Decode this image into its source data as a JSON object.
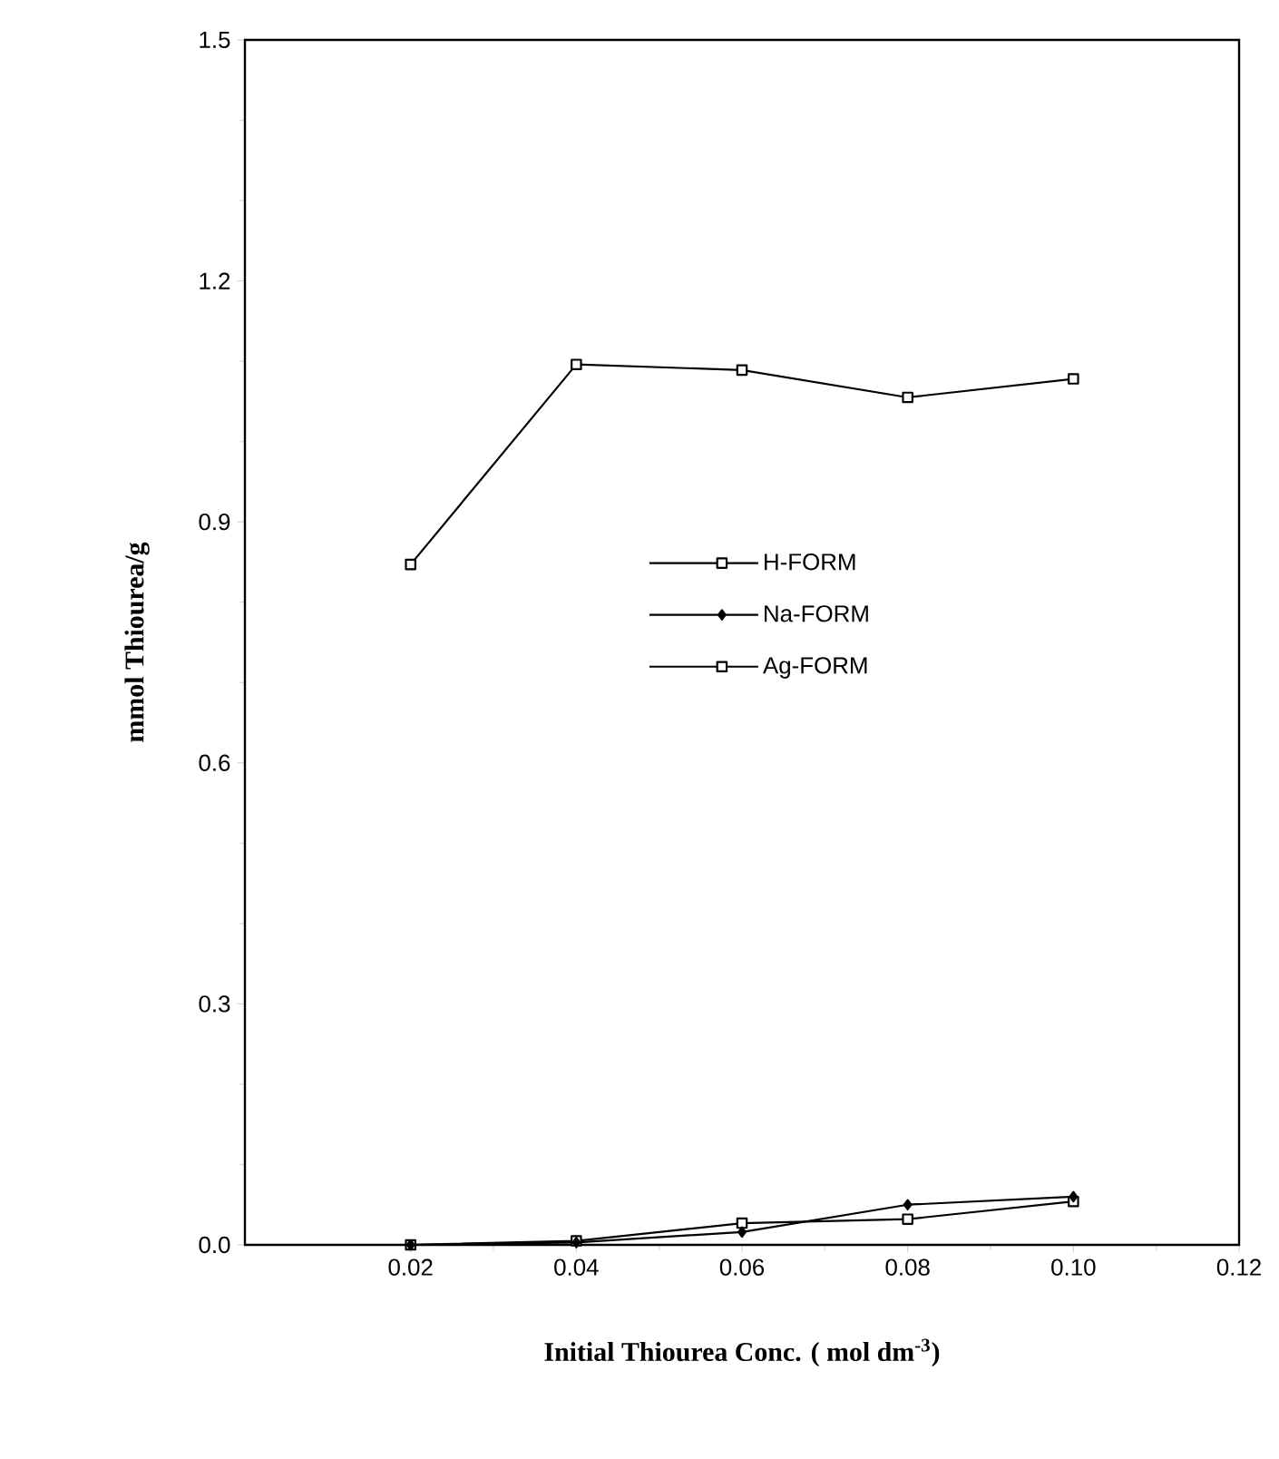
{
  "chart_data": {
    "type": "line",
    "xlabel": "Initial Thiourea Conc. ( mol dm$^{-3}$)",
    "ylabel": "mmol Thiourea/g",
    "x": [
      0.02,
      0.04,
      0.06,
      0.08,
      0.1
    ],
    "series": [
      {
        "name": "H-FORM",
        "color": "#000000",
        "marker": "square",
        "values": [
          0.0,
          0.005,
          0.027,
          0.032,
          0.054
        ]
      },
      {
        "name": "Na-FORM",
        "color": "#000000",
        "marker": "diamond",
        "values": [
          0.0,
          0.003,
          0.016,
          0.05,
          0.06
        ]
      },
      {
        "name": "Ag-FORM",
        "color": "#000000",
        "marker": "square",
        "values": [
          0.847,
          1.096,
          1.089,
          1.055,
          1.078
        ]
      }
    ],
    "xlim": [
      0,
      0.12
    ],
    "ylim": [
      0,
      1.5
    ],
    "xticks": [
      {
        "value": 0.02,
        "label": "0.02"
      },
      {
        "value": 0.04,
        "label": "0.04"
      },
      {
        "value": 0.06,
        "label": "0.06"
      },
      {
        "value": 0.08,
        "label": "0.08"
      },
      {
        "value": 0.1,
        "label": "0.10"
      },
      {
        "value": 0.12,
        "label": "0.12"
      }
    ],
    "yticks": [
      {
        "value": 0,
        "label": "0.0"
      },
      {
        "value": 0.3,
        "label": "0.3"
      },
      {
        "value": 0.6,
        "label": "0.6"
      },
      {
        "value": 0.9,
        "label": "0.9"
      },
      {
        "value": 1.2,
        "label": "1.2"
      },
      {
        "value": 1.5,
        "label": "1.5"
      }
    ],
    "grid": false,
    "legend": "center",
    "line_style": "solid"
  }
}
